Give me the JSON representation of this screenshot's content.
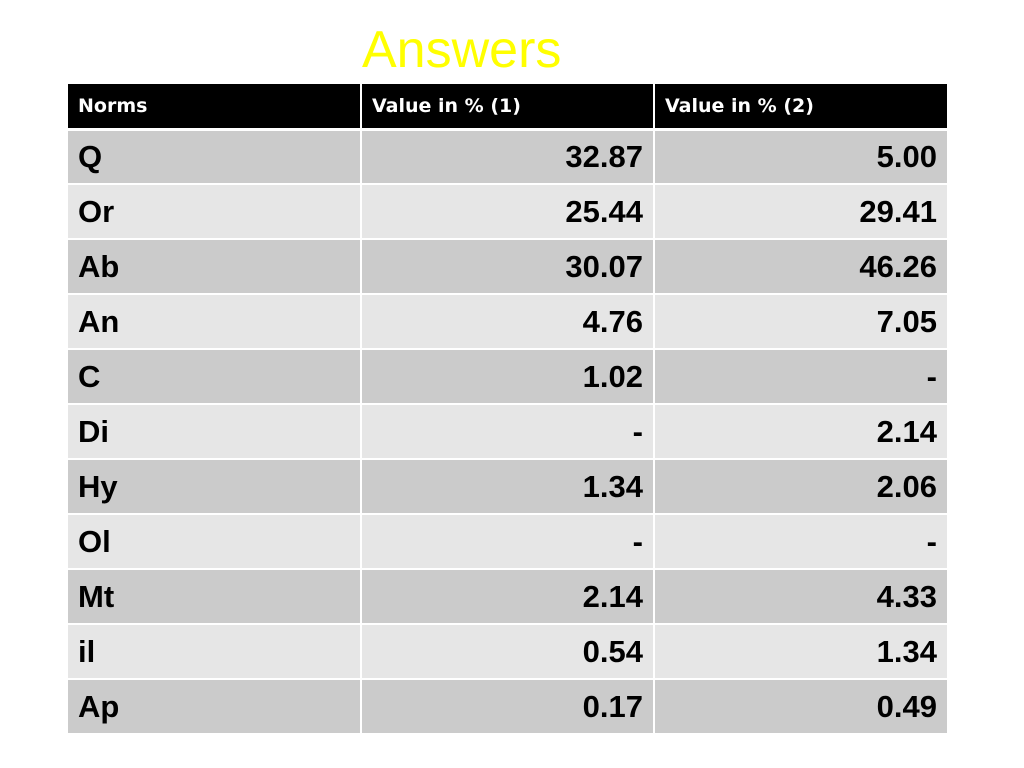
{
  "title": "Answers",
  "table": {
    "headers": [
      "Norms",
      "Value in % (1)",
      "Value in % (2)"
    ],
    "rows": [
      {
        "norm": "Q",
        "value1": "32.87",
        "value2": "5.00"
      },
      {
        "norm": "Or",
        "value1": "25.44",
        "value2": "29.41"
      },
      {
        "norm": "Ab",
        "value1": "30.07",
        "value2": "46.26"
      },
      {
        "norm": "An",
        "value1": "4.76",
        "value2": "7.05"
      },
      {
        "norm": "C",
        "value1": "1.02",
        "value2": "-"
      },
      {
        "norm": "Di",
        "value1": "-",
        "value2": "2.14"
      },
      {
        "norm": "Hy",
        "value1": "1.34",
        "value2": "2.06"
      },
      {
        "norm": "Ol",
        "value1": "-",
        "value2": "-"
      },
      {
        "norm": "Mt",
        "value1": "2.14",
        "value2": "4.33"
      },
      {
        "norm": "il",
        "value1": "0.54",
        "value2": "1.34"
      },
      {
        "norm": "Ap",
        "value1": "0.17",
        "value2": "0.49"
      }
    ]
  },
  "colors": {
    "title": "#ffff00",
    "header_bg": "#000000",
    "header_text": "#ffffff",
    "row_dark": "#cbcbcb",
    "row_light": "#e6e6e6"
  }
}
